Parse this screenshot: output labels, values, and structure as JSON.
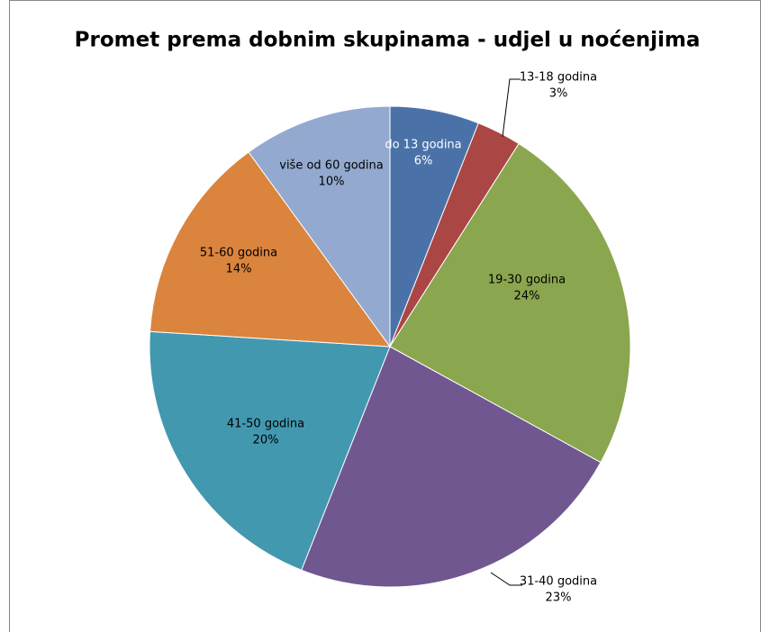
{
  "chart_data": {
    "type": "pie",
    "title": "Promet prema dobnim skupinama - udjel u noćenjima",
    "categories": [
      "do 13 godina",
      "13-18 godina",
      "19-30 godina",
      "31-40 godina",
      "41-50 godina",
      "51-60 godina",
      "više od 60 godina"
    ],
    "values": [
      6,
      3,
      24,
      23,
      20,
      14,
      10
    ],
    "value_labels": [
      "6%",
      "3%",
      "24%",
      "23%",
      "20%",
      "14%",
      "10%"
    ],
    "colors": [
      "#4a72a8",
      "#aa4644",
      "#8aa64e",
      "#71578f",
      "#4298af",
      "#db843d",
      "#93a9cf"
    ]
  }
}
